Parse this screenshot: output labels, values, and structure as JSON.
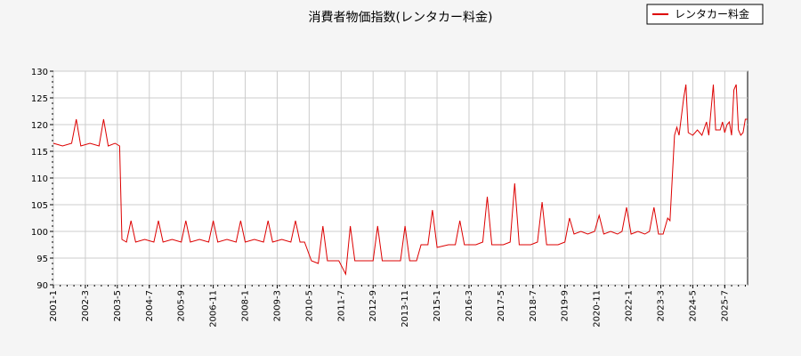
{
  "chart_data": {
    "type": "line",
    "title": "消費者物価指数(レンタカー料金)",
    "xlabel": "",
    "ylabel": "",
    "ylim": [
      90,
      130
    ],
    "yticks": [
      90,
      95,
      100,
      105,
      110,
      115,
      120,
      125,
      130
    ],
    "xticks": [
      "2001-1",
      "2002-3",
      "2003-5",
      "2004-7",
      "2005-9",
      "2006-11",
      "2008-1",
      "2009-3",
      "2010-5",
      "2011-7",
      "2012-9",
      "2013-11",
      "2015-1",
      "2016-3",
      "2017-5",
      "2018-7",
      "2019-9",
      "2020-11",
      "2022-1",
      "2023-3",
      "2024-5",
      "2025-7"
    ],
    "grid": true,
    "legend_position": "top-right",
    "line_color": "#dd0000",
    "series": [
      {
        "name": "レンタカー料金",
        "color": "#dd0000",
        "points": [
          [
            "2001-1",
            116.5
          ],
          [
            "2001-5",
            116.0
          ],
          [
            "2001-9",
            116.5
          ],
          [
            "2001-11",
            121.0
          ],
          [
            "2002-1",
            116.0
          ],
          [
            "2002-5",
            116.5
          ],
          [
            "2002-9",
            116.0
          ],
          [
            "2002-11",
            121.0
          ],
          [
            "2003-1",
            116.0
          ],
          [
            "2003-4",
            116.5
          ],
          [
            "2003-6",
            116.0
          ],
          [
            "2003-7",
            98.5
          ],
          [
            "2003-9",
            98.0
          ],
          [
            "2003-11",
            102.0
          ],
          [
            "2004-1",
            98.0
          ],
          [
            "2004-5",
            98.5
          ],
          [
            "2004-9",
            98.0
          ],
          [
            "2004-11",
            102.0
          ],
          [
            "2005-1",
            98.0
          ],
          [
            "2005-5",
            98.5
          ],
          [
            "2005-9",
            98.0
          ],
          [
            "2005-11",
            102.0
          ],
          [
            "2006-1",
            98.0
          ],
          [
            "2006-5",
            98.5
          ],
          [
            "2006-9",
            98.0
          ],
          [
            "2006-11",
            102.0
          ],
          [
            "2007-1",
            98.0
          ],
          [
            "2007-5",
            98.5
          ],
          [
            "2007-9",
            98.0
          ],
          [
            "2007-11",
            102.0
          ],
          [
            "2008-1",
            98.0
          ],
          [
            "2008-5",
            98.5
          ],
          [
            "2008-9",
            98.0
          ],
          [
            "2008-11",
            102.0
          ],
          [
            "2009-1",
            98.0
          ],
          [
            "2009-5",
            98.5
          ],
          [
            "2009-9",
            98.0
          ],
          [
            "2009-11",
            102.0
          ],
          [
            "2010-1",
            98.0
          ],
          [
            "2010-3",
            98.0
          ],
          [
            "2010-6",
            94.5
          ],
          [
            "2010-9",
            94.0
          ],
          [
            "2010-11",
            101.0
          ],
          [
            "2011-1",
            94.5
          ],
          [
            "2011-6",
            94.5
          ],
          [
            "2011-9",
            92.0
          ],
          [
            "2011-11",
            101.0
          ],
          [
            "2012-1",
            94.5
          ],
          [
            "2012-6",
            94.5
          ],
          [
            "2012-9",
            94.5
          ],
          [
            "2012-11",
            101.0
          ],
          [
            "2013-1",
            94.5
          ],
          [
            "2013-6",
            94.5
          ],
          [
            "2013-9",
            94.5
          ],
          [
            "2013-11",
            101.0
          ],
          [
            "2014-1",
            94.5
          ],
          [
            "2014-4",
            94.5
          ],
          [
            "2014-6",
            97.5
          ],
          [
            "2014-9",
            97.5
          ],
          [
            "2014-11",
            104.0
          ],
          [
            "2015-1",
            97.0
          ],
          [
            "2015-6",
            97.5
          ],
          [
            "2015-9",
            97.5
          ],
          [
            "2015-11",
            102.0
          ],
          [
            "2016-1",
            97.5
          ],
          [
            "2016-6",
            97.5
          ],
          [
            "2016-9",
            98.0
          ],
          [
            "2016-11",
            106.5
          ],
          [
            "2017-1",
            97.5
          ],
          [
            "2017-6",
            97.5
          ],
          [
            "2017-9",
            98.0
          ],
          [
            "2017-11",
            109.0
          ],
          [
            "2018-1",
            97.5
          ],
          [
            "2018-6",
            97.5
          ],
          [
            "2018-9",
            98.0
          ],
          [
            "2018-11",
            105.5
          ],
          [
            "2019-1",
            97.5
          ],
          [
            "2019-6",
            97.5
          ],
          [
            "2019-9",
            98.0
          ],
          [
            "2019-11",
            102.5
          ],
          [
            "2020-1",
            99.5
          ],
          [
            "2020-4",
            100.0
          ],
          [
            "2020-7",
            99.5
          ],
          [
            "2020-10",
            100.0
          ],
          [
            "2020-12",
            103.0
          ],
          [
            "2021-2",
            99.5
          ],
          [
            "2021-5",
            100.0
          ],
          [
            "2021-8",
            99.5
          ],
          [
            "2021-10",
            100.0
          ],
          [
            "2021-12",
            104.5
          ],
          [
            "2022-2",
            99.5
          ],
          [
            "2022-5",
            100.0
          ],
          [
            "2022-8",
            99.5
          ],
          [
            "2022-10",
            100.0
          ],
          [
            "2022-12",
            104.5
          ],
          [
            "2023-2",
            99.5
          ],
          [
            "2023-4",
            99.5
          ],
          [
            "2023-6",
            102.5
          ],
          [
            "2023-7",
            102.0
          ],
          [
            "2023-9",
            118.0
          ],
          [
            "2023-10",
            119.5
          ],
          [
            "2023-11",
            118.0
          ],
          [
            "2024-1",
            125.0
          ],
          [
            "2024-2",
            127.5
          ],
          [
            "2024-3",
            118.5
          ],
          [
            "2024-5",
            118.0
          ],
          [
            "2024-7",
            119.0
          ],
          [
            "2024-9",
            118.0
          ],
          [
            "2024-11",
            120.5
          ],
          [
            "2024-12",
            118.0
          ],
          [
            "2025-2",
            127.5
          ],
          [
            "2025-3",
            119.0
          ],
          [
            "2025-5",
            119.0
          ],
          [
            "2025-6",
            120.5
          ],
          [
            "2025-7",
            118.5
          ],
          [
            "2025-8",
            120.0
          ],
          [
            "2025-9",
            120.5
          ],
          [
            "2025-10",
            118.0
          ],
          [
            "2025-11",
            126.5
          ],
          [
            "2025-12",
            127.5
          ],
          [
            "2026-1",
            119.0
          ],
          [
            "2026-2",
            118.0
          ],
          [
            "2026-3",
            118.5
          ],
          [
            "2026-4",
            121.0
          ],
          [
            "2026-5",
            121.0
          ]
        ]
      }
    ]
  }
}
